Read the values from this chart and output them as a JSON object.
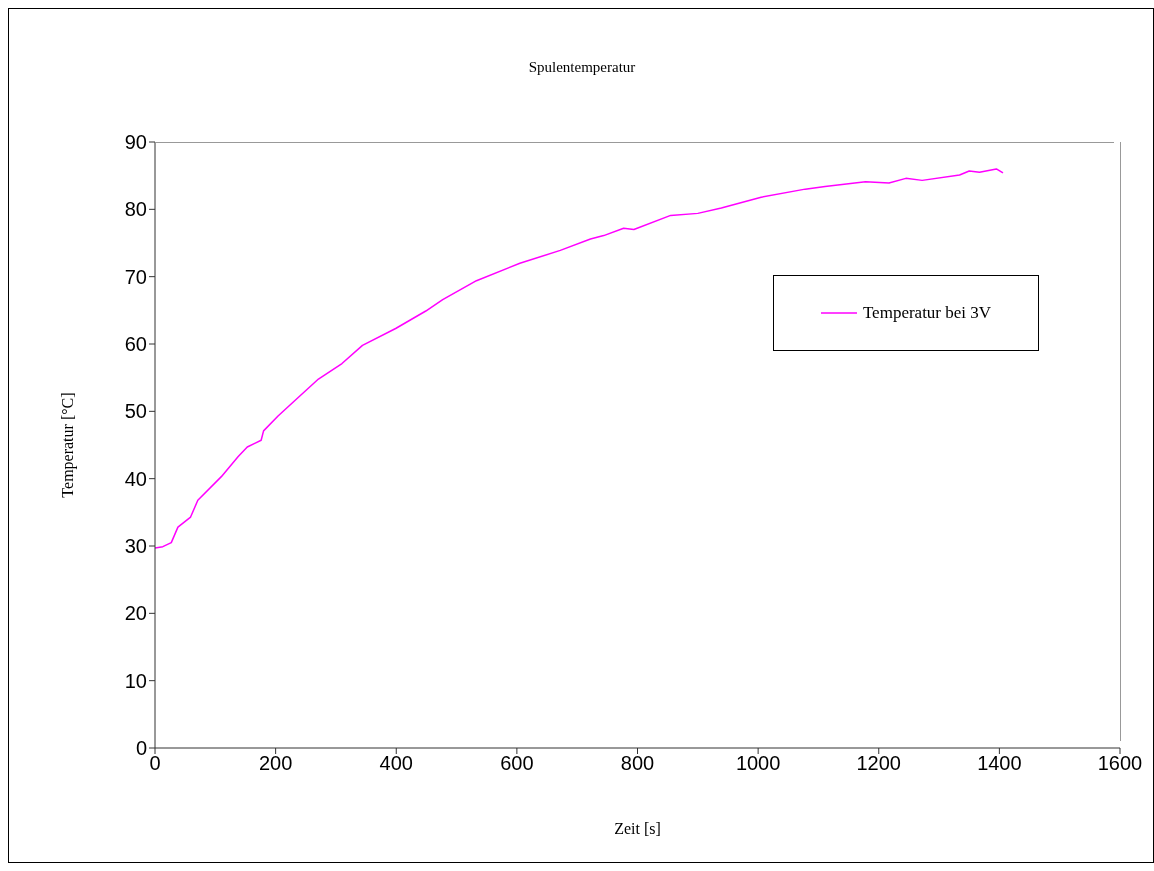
{
  "chart_data": {
    "type": "line",
    "title": "Spulentemperatur",
    "xlabel": "Zeit [s]",
    "ylabel": "Temperatur [°C]",
    "x": [
      0,
      13,
      27,
      38,
      59,
      71,
      110,
      138,
      153,
      176,
      180,
      204,
      232,
      271,
      310,
      344,
      399,
      449,
      477,
      533,
      605,
      672,
      722,
      744,
      777,
      794,
      855,
      900,
      939,
      1005,
      1078,
      1111,
      1178,
      1217,
      1245,
      1272,
      1334,
      1350,
      1367,
      1395,
      1406
    ],
    "series": [
      {
        "name": "Temperatur bei 3V",
        "color": "#ff00ff",
        "values": [
          29.7,
          29.9,
          30.5,
          32.8,
          34.3,
          36.8,
          40.3,
          43.3,
          44.7,
          45.7,
          47.1,
          49.3,
          51.6,
          54.8,
          57.1,
          59.8,
          62.3,
          64.9,
          66.6,
          69.4,
          72.0,
          73.9,
          75.6,
          76.1,
          77.2,
          77.0,
          79.1,
          79.4,
          80.2,
          81.8,
          83.0,
          83.4,
          84.1,
          83.9,
          84.6,
          84.3,
          85.1,
          85.7,
          85.5,
          86.0,
          85.4
        ]
      }
    ],
    "xlim": [
      0,
      1600
    ],
    "xticks": [
      0,
      200,
      400,
      600,
      800,
      1000,
      1200,
      1400,
      1600
    ],
    "ylim": [
      0,
      90
    ],
    "yticks": [
      0,
      10,
      20,
      30,
      40,
      50,
      60,
      70,
      80,
      90
    ],
    "grid": false,
    "legend": "right",
    "marker": "none",
    "line_style": "solid"
  }
}
